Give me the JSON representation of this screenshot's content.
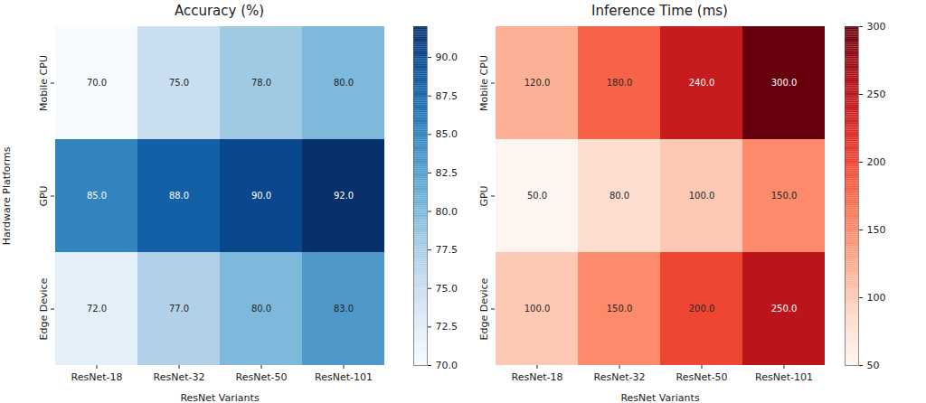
{
  "chart_data": [
    {
      "type": "heatmap",
      "title": "Accuracy (%)",
      "x_label": "ResNet Variants",
      "y_label": "Hardware Platforms",
      "x_categories": [
        "ResNet-18",
        "ResNet-32",
        "ResNet-50",
        "ResNet-101"
      ],
      "y_categories": [
        "Mobile CPU",
        "GPU",
        "Edge Device"
      ],
      "values": [
        [
          70,
          75,
          78,
          80
        ],
        [
          85,
          88,
          90,
          92
        ],
        [
          72,
          77,
          80,
          83
        ]
      ],
      "value_labels": [
        [
          "70.0",
          "75.0",
          "78.0",
          "80.0"
        ],
        [
          "85.0",
          "88.0",
          "90.0",
          "92.0"
        ],
        [
          "72.0",
          "77.0",
          "80.0",
          "83.0"
        ]
      ],
      "data_labels": true,
      "color": "Blues",
      "colorbar_lim": [
        70,
        92
      ],
      "colorbar_ticks": [
        {
          "value": 70,
          "label": "70.0"
        },
        {
          "value": 72.5,
          "label": "72.5"
        },
        {
          "value": 75,
          "label": "75.0"
        },
        {
          "value": 77.5,
          "label": "77.5"
        },
        {
          "value": 80,
          "label": "80.0"
        },
        {
          "value": 82.5,
          "label": "82.5"
        },
        {
          "value": 85,
          "label": "85.0"
        },
        {
          "value": 87.5,
          "label": "87.5"
        },
        {
          "value": 90,
          "label": "90.0"
        }
      ]
    },
    {
      "type": "heatmap",
      "title": "Inference Time (ms)",
      "x_label": "ResNet Variants",
      "x_categories": [
        "ResNet-18",
        "ResNet-32",
        "ResNet-50",
        "ResNet-101"
      ],
      "y_categories": [
        "Mobile CPU",
        "GPU",
        "Edge Device"
      ],
      "values": [
        [
          120,
          180,
          240,
          300
        ],
        [
          50,
          80,
          100,
          150
        ],
        [
          100,
          150,
          200,
          250
        ]
      ],
      "value_labels": [
        [
          "120.0",
          "180.0",
          "240.0",
          "300.0"
        ],
        [
          "50.0",
          "80.0",
          "100.0",
          "150.0"
        ],
        [
          "100.0",
          "150.0",
          "200.0",
          "250.0"
        ]
      ],
      "data_labels": true,
      "color": "Reds",
      "colorbar_lim": [
        50,
        300
      ],
      "colorbar_ticks": [
        50,
        100,
        150,
        200,
        250,
        300
      ]
    }
  ]
}
